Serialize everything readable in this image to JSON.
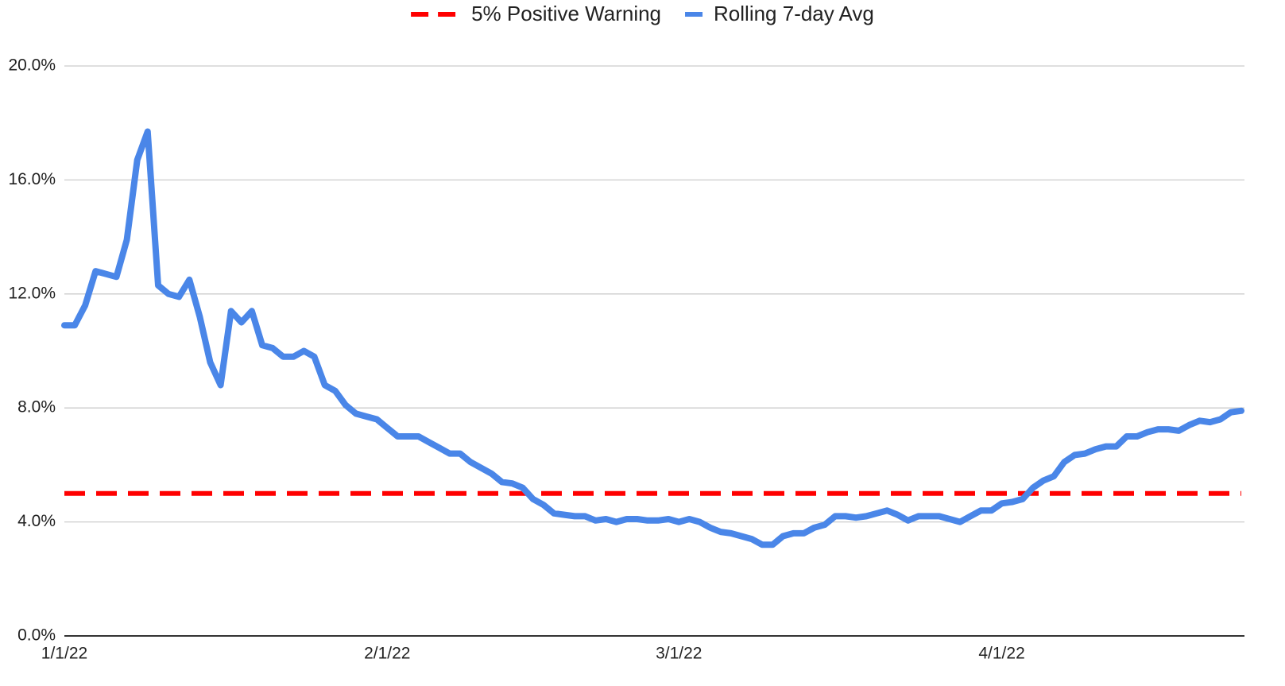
{
  "chart_data": {
    "type": "line",
    "categories": [
      "1/1/22",
      null,
      null,
      null,
      null,
      null,
      null,
      null,
      null,
      null,
      null,
      null,
      null,
      null,
      null,
      null,
      null,
      null,
      null,
      null,
      null,
      null,
      null,
      null,
      null,
      null,
      null,
      null,
      null,
      null,
      null,
      "2/1/22",
      null,
      null,
      null,
      null,
      null,
      null,
      null,
      null,
      null,
      null,
      null,
      null,
      null,
      null,
      null,
      null,
      null,
      null,
      null,
      null,
      null,
      null,
      null,
      null,
      null,
      null,
      null,
      "3/1/22",
      null,
      null,
      null,
      null,
      null,
      null,
      null,
      null,
      null,
      null,
      null,
      null,
      null,
      null,
      null,
      null,
      null,
      null,
      null,
      null,
      null,
      null,
      null,
      null,
      null,
      null,
      null,
      null,
      null,
      null,
      "4/1/22",
      null,
      null,
      null,
      null,
      null,
      null,
      null,
      null,
      null,
      null,
      null,
      null,
      null,
      null,
      null,
      null,
      null,
      null,
      null,
      null,
      null,
      null,
      null
    ],
    "series": [
      {
        "name": "5% Positive Warning",
        "color": "#ff0000",
        "line_style": "dashed",
        "values": [
          5,
          5,
          5,
          5,
          5,
          5,
          5,
          5,
          5,
          5,
          5,
          5,
          5,
          5,
          5,
          5,
          5,
          5,
          5,
          5,
          5,
          5,
          5,
          5,
          5,
          5,
          5,
          5,
          5,
          5,
          5,
          5,
          5,
          5,
          5,
          5,
          5,
          5,
          5,
          5,
          5,
          5,
          5,
          5,
          5,
          5,
          5,
          5,
          5,
          5,
          5,
          5,
          5,
          5,
          5,
          5,
          5,
          5,
          5,
          5,
          5,
          5,
          5,
          5,
          5,
          5,
          5,
          5,
          5,
          5,
          5,
          5,
          5,
          5,
          5,
          5,
          5,
          5,
          5,
          5,
          5,
          5,
          5,
          5,
          5,
          5,
          5,
          5,
          5,
          5,
          5,
          5,
          5,
          5,
          5,
          5,
          5,
          5,
          5,
          5,
          5,
          5,
          5,
          5,
          5,
          5,
          5,
          5,
          5,
          5,
          5,
          5,
          5,
          5
        ]
      },
      {
        "name": "Rolling 7-day Avg",
        "color": "#4a86e8",
        "line_style": "solid",
        "values": [
          10.9,
          10.9,
          11.6,
          12.8,
          12.7,
          12.6,
          13.9,
          16.7,
          17.7,
          12.3,
          12.0,
          11.9,
          12.5,
          11.2,
          9.6,
          8.8,
          11.4,
          11.0,
          11.4,
          10.2,
          10.1,
          9.8,
          9.8,
          10.0,
          9.8,
          8.8,
          8.6,
          8.1,
          7.8,
          7.7,
          7.6,
          7.3,
          7.0,
          7.0,
          7.0,
          6.8,
          6.6,
          6.4,
          6.4,
          6.1,
          5.9,
          5.7,
          5.4,
          5.35,
          5.2,
          4.8,
          4.6,
          4.3,
          4.25,
          4.2,
          4.2,
          4.05,
          4.1,
          4.0,
          4.1,
          4.1,
          4.05,
          4.05,
          4.1,
          4.0,
          4.1,
          4.0,
          3.8,
          3.65,
          3.6,
          3.5,
          3.4,
          3.2,
          3.2,
          3.5,
          3.6,
          3.6,
          3.8,
          3.9,
          4.2,
          4.2,
          4.15,
          4.2,
          4.3,
          4.4,
          4.25,
          4.05,
          4.2,
          4.2,
          4.2,
          4.1,
          4.0,
          4.2,
          4.4,
          4.4,
          4.65,
          4.7,
          4.8,
          5.2,
          5.45,
          5.6,
          6.1,
          6.35,
          6.4,
          6.55,
          6.65,
          6.65,
          7.0,
          7.0,
          7.15,
          7.25,
          7.25,
          7.2,
          7.4,
          7.55,
          7.5,
          7.6,
          7.85,
          7.9
        ]
      }
    ],
    "ylim": [
      0,
      20
    ],
    "yticks": [
      {
        "value": 0,
        "label": "0.0%"
      },
      {
        "value": 4,
        "label": "4.0%"
      },
      {
        "value": 8,
        "label": "8.0%"
      },
      {
        "value": 12,
        "label": "12.0%"
      },
      {
        "value": 16,
        "label": "16.0%"
      },
      {
        "value": 20,
        "label": "20.0%"
      }
    ],
    "grid": true,
    "legend": "top"
  }
}
